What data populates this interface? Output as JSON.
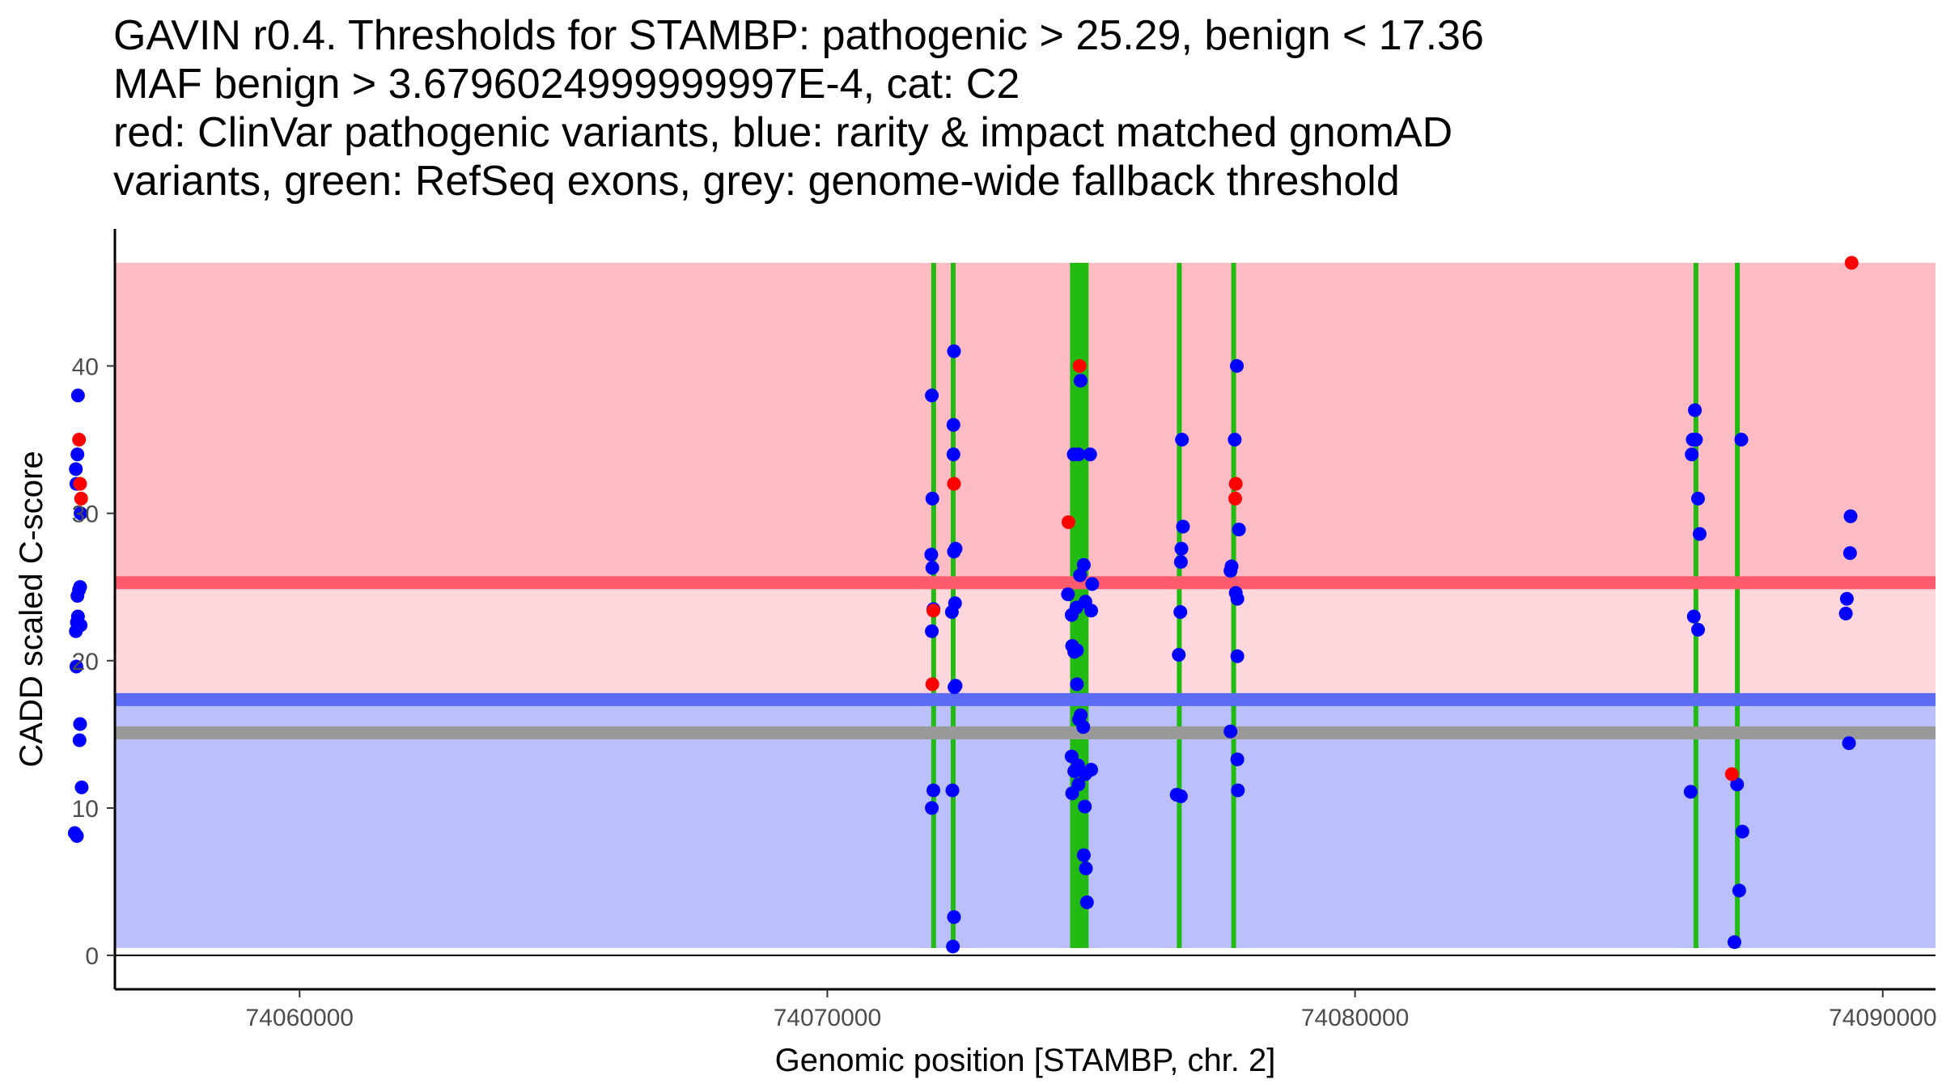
{
  "title_lines": [
    "GAVIN r0.4. Thresholds for STAMBP: pathogenic > 25.29, benign < 17.36",
    "MAF benign > 3.6796024999999997E-4, cat: C2",
    "red: ClinVar pathogenic variants, blue: rarity & impact matched gnomAD",
    "variants, green: RefSeq exons, grey: genome-wide fallback threshold"
  ],
  "colors": {
    "pathogenic_zone": "#fdbbc3",
    "vus_zone": "#fed6dc",
    "benign_zone": "#bbbffb",
    "pathogenic_line": "#fd5b6d",
    "benign_line": "#5b6bf6",
    "fallback_line": "#999999",
    "exon": "#22bb11",
    "clinvar": "#ff0000",
    "gnomad": "#0000ff"
  },
  "chart_data": {
    "type": "scatter",
    "xlabel": "Genomic position [STAMBP, chr. 2]",
    "ylabel": "CADD scaled C-score",
    "xlim": [
      74056500,
      74091000
    ],
    "ylim": [
      -2.3,
      49.3
    ],
    "xticks": [
      74060000,
      74070000,
      74080000,
      74090000
    ],
    "yticks": [
      0,
      10,
      20,
      30,
      40
    ],
    "thresholds": {
      "pathogenic": 25.29,
      "benign": 17.36,
      "fallback": 15.1
    },
    "zones": {
      "pathogenic": [
        25.29,
        47
      ],
      "vus": [
        17.36,
        25.29
      ],
      "benign": [
        0.5,
        17.36
      ]
    },
    "exons": [
      [
        74071990,
        74072040
      ],
      [
        74072360,
        74072410
      ],
      [
        74074600,
        74074950
      ],
      [
        74076640,
        74076700
      ],
      [
        74077660,
        74077740
      ],
      [
        74086430,
        74086490
      ],
      [
        74087220,
        74087270
      ]
    ],
    "series": [
      {
        "name": "gnomAD",
        "points": [
          [
            74055800,
            38
          ],
          [
            74055790,
            34
          ],
          [
            74055760,
            33
          ],
          [
            74055770,
            32
          ],
          [
            74055850,
            30
          ],
          [
            74055840,
            25
          ],
          [
            74055820,
            24.8
          ],
          [
            74055790,
            24.4
          ],
          [
            74055800,
            23
          ],
          [
            74055780,
            22.6
          ],
          [
            74055850,
            22.4
          ],
          [
            74055760,
            22
          ],
          [
            74055770,
            19.6
          ],
          [
            74055840,
            15.7
          ],
          [
            74055830,
            14.6
          ],
          [
            74055870,
            11.4
          ],
          [
            74055740,
            8.3
          ],
          [
            74055780,
            8.1
          ],
          [
            74071980,
            38
          ],
          [
            74071990,
            31
          ],
          [
            74071970,
            27.2
          ],
          [
            74071990,
            26.3
          ],
          [
            74072010,
            23.5
          ],
          [
            74071980,
            22
          ],
          [
            74072010,
            11.2
          ],
          [
            74071980,
            10
          ],
          [
            74072400,
            41
          ],
          [
            74072390,
            36
          ],
          [
            74072390,
            34
          ],
          [
            74072430,
            27.6
          ],
          [
            74072400,
            27.4
          ],
          [
            74072420,
            23.9
          ],
          [
            74072360,
            23.3
          ],
          [
            74072430,
            18.3
          ],
          [
            74072410,
            18.2
          ],
          [
            74072370,
            11.2
          ],
          [
            74072400,
            2.6
          ],
          [
            74072380,
            0.6
          ],
          [
            74074800,
            39
          ],
          [
            74074670,
            34
          ],
          [
            74074760,
            34
          ],
          [
            74074980,
            34
          ],
          [
            74074860,
            26.5
          ],
          [
            74074790,
            25.8
          ],
          [
            74075020,
            25.2
          ],
          [
            74074560,
            24.5
          ],
          [
            74074890,
            24
          ],
          [
            74074720,
            23.6
          ],
          [
            74075000,
            23.4
          ],
          [
            74074630,
            23.1
          ],
          [
            74074640,
            21
          ],
          [
            74074730,
            20.7
          ],
          [
            74074680,
            20.6
          ],
          [
            74074730,
            18.4
          ],
          [
            74074800,
            16.3
          ],
          [
            74074770,
            16
          ],
          [
            74074850,
            15.5
          ],
          [
            74074630,
            13.5
          ],
          [
            74074750,
            12.9
          ],
          [
            74074680,
            12.5
          ],
          [
            74075000,
            12.6
          ],
          [
            74074890,
            12.3
          ],
          [
            74074760,
            11.6
          ],
          [
            74074640,
            11
          ],
          [
            74074880,
            10.1
          ],
          [
            74074860,
            6.8
          ],
          [
            74074900,
            5.9
          ],
          [
            74074920,
            3.6
          ],
          [
            74076720,
            35
          ],
          [
            74076740,
            29.1
          ],
          [
            74076710,
            27.6
          ],
          [
            74076700,
            26.7
          ],
          [
            74076690,
            23.3
          ],
          [
            74076660,
            20.4
          ],
          [
            74076620,
            10.9
          ],
          [
            74076700,
            10.8
          ],
          [
            74077760,
            40
          ],
          [
            74077720,
            35
          ],
          [
            74077800,
            28.9
          ],
          [
            74077660,
            26.4
          ],
          [
            74077640,
            26.1
          ],
          [
            74077740,
            24.6
          ],
          [
            74077770,
            24.2
          ],
          [
            74077770,
            20.3
          ],
          [
            74077640,
            15.2
          ],
          [
            74077770,
            13.3
          ],
          [
            74077780,
            11.2
          ],
          [
            74086440,
            37
          ],
          [
            74086460,
            35
          ],
          [
            74086400,
            35
          ],
          [
            74086380,
            34
          ],
          [
            74086500,
            31
          ],
          [
            74086530,
            28.6
          ],
          [
            74086420,
            23
          ],
          [
            74086500,
            22.1
          ],
          [
            74086360,
            11.1
          ],
          [
            74087320,
            35
          ],
          [
            74087240,
            11.6
          ],
          [
            74087340,
            8.4
          ],
          [
            74087280,
            4.4
          ],
          [
            74087190,
            0.9
          ],
          [
            74089390,
            29.8
          ],
          [
            74089380,
            27.3
          ],
          [
            74089320,
            24.2
          ],
          [
            74089300,
            23.2
          ],
          [
            74089360,
            14.4
          ]
        ]
      },
      {
        "name": "ClinVar",
        "points": [
          [
            74055820,
            35
          ],
          [
            74055840,
            32
          ],
          [
            74055860,
            31
          ],
          [
            74072400,
            32
          ],
          [
            74072010,
            23.4
          ],
          [
            74071990,
            18.4
          ],
          [
            74074780,
            40
          ],
          [
            74074570,
            29.4
          ],
          [
            74077740,
            32
          ],
          [
            74077730,
            31
          ],
          [
            74087140,
            12.3
          ],
          [
            74089410,
            47
          ]
        ]
      }
    ]
  }
}
